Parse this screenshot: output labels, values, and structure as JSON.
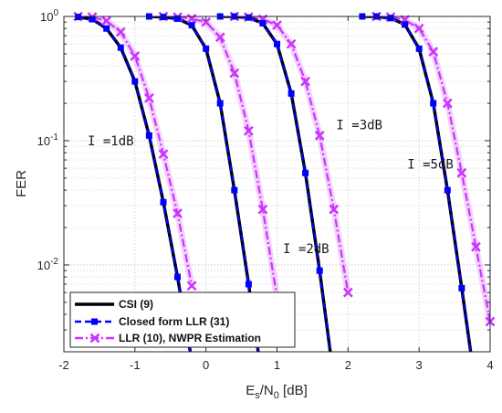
{
  "chart_data": {
    "type": "line",
    "xlabel": "E_s/N_0 [dB]",
    "xlabel_main": "E",
    "xlabel_sub1": "s",
    "xlabel_mid": "/N",
    "xlabel_sub2": "0",
    "xlabel_unit": " [dB]",
    "ylabel": "FER",
    "xlim": [
      -2,
      4
    ],
    "ylim": [
      0.002,
      1
    ],
    "yscale": "log",
    "grid": true,
    "legend_position": "bottom-left",
    "xticks": [
      -2,
      -1,
      0,
      1,
      2,
      3,
      4
    ],
    "xtick_labels": [
      "-2",
      "-1",
      "0",
      "1",
      "2",
      "3",
      "4"
    ],
    "ytick_labels": [
      {
        "base": "10",
        "exp": "0",
        "value": 1
      },
      {
        "base": "10",
        "exp": "-1",
        "value": 0.1
      },
      {
        "base": "10",
        "exp": "-2",
        "value": 0.01
      }
    ],
    "annotations": [
      {
        "text": "I =1dB",
        "x": -2.0,
        "y": 0.1
      },
      {
        "text": "I =3dB",
        "x": 1.5,
        "y": 0.135
      },
      {
        "text": "I =5dB",
        "x": 2.5,
        "y": 0.065
      },
      {
        "text": "I =2dB",
        "x": 0.75,
        "y": 0.0135
      }
    ],
    "groups": [
      "I =1dB",
      "I =2dB",
      "I =3dB",
      "I =5dB"
    ],
    "series": [
      {
        "name": "CSI (9)",
        "color": "#000000",
        "style": "solid",
        "marker": "none",
        "groups": [
          {
            "x": [
              -1.8,
              -1.6,
              -1.4,
              -1.2,
              -1.0,
              -0.8,
              -0.6,
              -0.4,
              -0.2
            ],
            "y": [
              0.99,
              0.95,
              0.8,
              0.56,
              0.3,
              0.11,
              0.032,
              0.008,
              0.0017
            ]
          },
          {
            "x": [
              -0.8,
              -0.6,
              -0.4,
              -0.2,
              0.0,
              0.2,
              0.4,
              0.6,
              0.8
            ],
            "y": [
              1.0,
              0.99,
              0.96,
              0.85,
              0.55,
              0.2,
              0.04,
              0.007,
              0.0011
            ]
          },
          {
            "x": [
              0.2,
              0.4,
              0.6,
              0.8,
              1.0,
              1.2,
              1.4,
              1.6,
              1.8
            ],
            "y": [
              1.0,
              1.0,
              0.98,
              0.88,
              0.6,
              0.24,
              0.055,
              0.009,
              0.0012
            ]
          },
          {
            "x": [
              2.2,
              2.4,
              2.6,
              2.8,
              3.0,
              3.2,
              3.4,
              3.6,
              3.8
            ],
            "y": [
              1.0,
              1.0,
              0.97,
              0.86,
              0.55,
              0.2,
              0.04,
              0.0065,
              0.001
            ]
          }
        ]
      },
      {
        "name": "Closed form LLR (31)",
        "color": "#0000ff",
        "style": "dashed",
        "marker": "square",
        "groups": [
          {
            "x": [
              -1.8,
              -1.6,
              -1.4,
              -1.2,
              -1.0,
              -0.8,
              -0.6,
              -0.4,
              -0.2
            ],
            "y": [
              0.99,
              0.95,
              0.8,
              0.56,
              0.3,
              0.11,
              0.032,
              0.008,
              0.0017
            ]
          },
          {
            "x": [
              -0.8,
              -0.6,
              -0.4,
              -0.2,
              0.0,
              0.2,
              0.4,
              0.6,
              0.8
            ],
            "y": [
              1.0,
              0.99,
              0.96,
              0.85,
              0.55,
              0.2,
              0.04,
              0.007,
              0.0011
            ]
          },
          {
            "x": [
              0.2,
              0.4,
              0.6,
              0.8,
              1.0,
              1.2,
              1.4,
              1.6,
              1.8
            ],
            "y": [
              1.0,
              1.0,
              0.98,
              0.88,
              0.6,
              0.24,
              0.055,
              0.009,
              0.0012
            ]
          },
          {
            "x": [
              2.2,
              2.4,
              2.6,
              2.8,
              3.0,
              3.2,
              3.4,
              3.6,
              3.8
            ],
            "y": [
              1.0,
              1.0,
              0.97,
              0.86,
              0.55,
              0.2,
              0.04,
              0.0065,
              0.001
            ]
          }
        ]
      },
      {
        "name": "LLR (10), NWPR Estimation",
        "color": "#cc33ff",
        "style": "dashdot",
        "marker": "x",
        "groups": [
          {
            "x": [
              -1.8,
              -1.6,
              -1.4,
              -1.2,
              -1.0,
              -0.8,
              -0.6,
              -0.4,
              -0.2
            ],
            "y": [
              1.0,
              0.99,
              0.92,
              0.75,
              0.48,
              0.22,
              0.078,
              0.026,
              0.0068
            ]
          },
          {
            "x": [
              -0.6,
              -0.4,
              -0.2,
              0.0,
              0.2,
              0.4,
              0.6,
              0.8,
              1.0
            ],
            "y": [
              1.0,
              0.99,
              0.96,
              0.9,
              0.68,
              0.35,
              0.12,
              0.028,
              0.0055
            ]
          },
          {
            "x": [
              0.4,
              0.6,
              0.8,
              1.0,
              1.2,
              1.4,
              1.6,
              1.8,
              2.0
            ],
            "y": [
              1.0,
              0.99,
              0.95,
              0.85,
              0.6,
              0.3,
              0.11,
              0.028,
              0.006
            ]
          },
          {
            "x": [
              2.4,
              2.6,
              2.8,
              3.0,
              3.2,
              3.4,
              3.6,
              3.8,
              4.0
            ],
            "y": [
              1.0,
              0.99,
              0.94,
              0.8,
              0.52,
              0.2,
              0.055,
              0.014,
              0.0035
            ]
          }
        ]
      }
    ]
  }
}
